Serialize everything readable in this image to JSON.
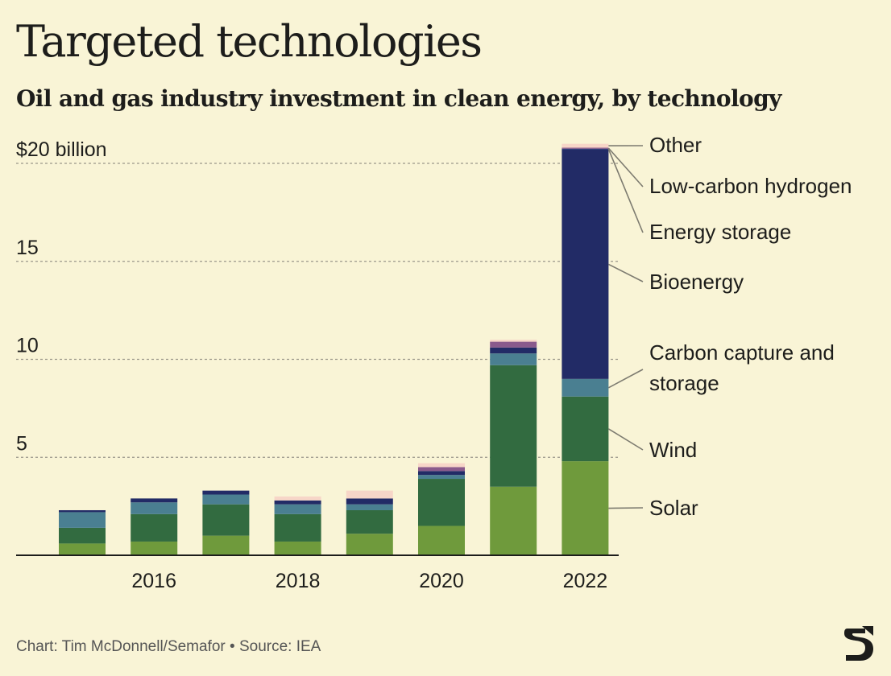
{
  "title": "Targeted technologies",
  "subtitle": "Oil and gas industry investment in clean energy, by technology",
  "footer": "Chart: Tim McDonnell/Semafor • Source: IEA",
  "logo_icon": "semafor-logo-icon",
  "chart_data": {
    "type": "bar",
    "stacked": true,
    "title": "Targeted technologies",
    "subtitle": "Oil and gas industry investment in clean energy, by technology",
    "xlabel": "",
    "ylabel": "",
    "ylim": [
      0,
      21
    ],
    "x": [
      2015,
      2016,
      2017,
      2018,
      2019,
      2020,
      2021,
      2022
    ],
    "x_tick_labels": [
      {
        "x": 2016,
        "label": "2016"
      },
      {
        "x": 2018,
        "label": "2018"
      },
      {
        "x": 2020,
        "label": "2020"
      },
      {
        "x": 2022,
        "label": "2022"
      }
    ],
    "y_ticks": [
      {
        "value": 5,
        "label": "5"
      },
      {
        "value": 10,
        "label": "10"
      },
      {
        "value": 15,
        "label": "15"
      },
      {
        "value": 20,
        "label": "$20 billion"
      }
    ],
    "grid": true,
    "series": [
      {
        "name": "Solar",
        "color": "#6f9a3c",
        "values": [
          0.6,
          0.7,
          1.0,
          0.7,
          1.1,
          1.5,
          3.5,
          4.8
        ]
      },
      {
        "name": "Wind",
        "color": "#326b40",
        "values": [
          0.8,
          1.4,
          1.6,
          1.4,
          1.2,
          2.4,
          6.2,
          3.3
        ]
      },
      {
        "name": "Carbon capture and storage",
        "color": "#4a7f91",
        "values": [
          0.8,
          0.6,
          0.5,
          0.5,
          0.3,
          0.2,
          0.6,
          0.9
        ]
      },
      {
        "name": "Bioenergy",
        "color": "#222b66",
        "values": [
          0.1,
          0.2,
          0.2,
          0.2,
          0.3,
          0.2,
          0.3,
          11.7
        ]
      },
      {
        "name": "Energy storage",
        "color": "#2b3a7a",
        "values": [
          0.0,
          0.0,
          0.0,
          0.0,
          0.0,
          0.0,
          0.0,
          0.05
        ]
      },
      {
        "name": "Low-carbon hydrogen",
        "color": "#8a5a8c",
        "values": [
          0.0,
          0.0,
          0.0,
          0.0,
          0.0,
          0.2,
          0.3,
          0.05
        ]
      },
      {
        "name": "Other",
        "color": "#f7d6c8",
        "values": [
          0.0,
          0.0,
          0.0,
          0.2,
          0.4,
          0.2,
          0.1,
          0.2
        ]
      }
    ],
    "legend": [
      {
        "name": "Other",
        "label": "Other"
      },
      {
        "name": "Low-carbon hydrogen",
        "label": "Low-carbon hydrogen"
      },
      {
        "name": "Energy storage",
        "label": "Energy storage"
      },
      {
        "name": "Bioenergy",
        "label": "Bioenergy"
      },
      {
        "name": "Carbon capture and storage",
        "label": "Carbon capture and storage"
      },
      {
        "name": "Wind",
        "label": "Wind"
      },
      {
        "name": "Solar",
        "label": "Solar"
      }
    ],
    "legend_placement": "right"
  }
}
